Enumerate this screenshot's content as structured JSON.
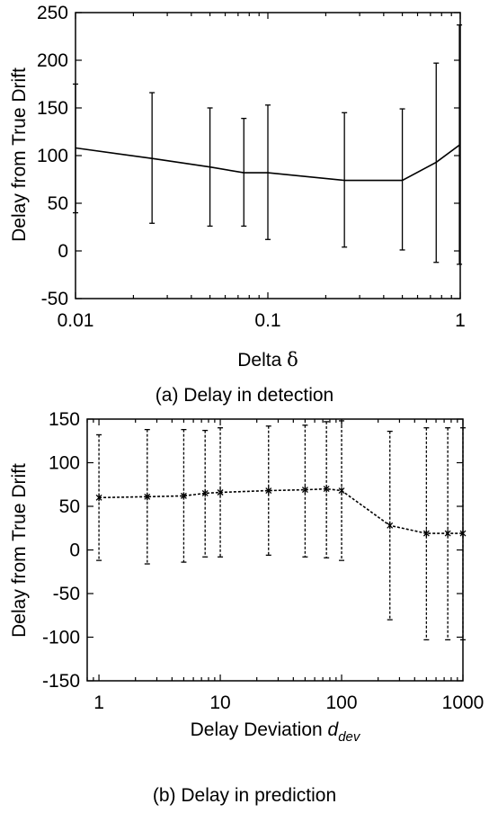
{
  "chart_data": [
    {
      "type": "line",
      "caption": "(a) Delay in detection",
      "xlabel": "Delta δ",
      "ylabel": "Delay from True Drift",
      "xscale": "log",
      "xlim": [
        0.01,
        1
      ],
      "ylim": [
        -50,
        250
      ],
      "xticks": [
        0.01,
        0.1,
        1
      ],
      "xtick_labels": [
        "0.01",
        "0.1",
        "1"
      ],
      "yticks": [
        -50,
        0,
        50,
        100,
        150,
        200,
        250
      ],
      "ytick_labels": [
        "-50",
        "0",
        "50",
        "100",
        "150",
        "200",
        "250"
      ],
      "line_style": "solid",
      "markers": false,
      "grid": false,
      "series": [
        {
          "x": [
            0.01,
            0.025,
            0.05,
            0.075,
            0.1,
            0.25,
            0.5,
            0.75,
            0.99
          ],
          "y": [
            108,
            97,
            88,
            82,
            82,
            74,
            74,
            93,
            111
          ],
          "err_low": [
            40,
            29,
            26,
            26,
            12,
            4,
            1,
            -12,
            -14
          ],
          "err_high": [
            175,
            166,
            150,
            139,
            153,
            145,
            149,
            197,
            237
          ]
        }
      ]
    },
    {
      "type": "line",
      "caption": "(b) Delay in prediction",
      "xlabel": "Delay Deviation ",
      "xlabel_var": "d",
      "xlabel_sub": "dev",
      "ylabel": "Delay from True Drift",
      "xscale": "log",
      "xlim": [
        0.8,
        1000
      ],
      "ylim": [
        -150,
        150
      ],
      "xticks": [
        1,
        10,
        100,
        1000
      ],
      "xtick_labels": [
        "1",
        "10",
        "100",
        "1000"
      ],
      "yticks": [
        -150,
        -100,
        -50,
        0,
        50,
        100,
        150
      ],
      "ytick_labels": [
        "-150",
        "-100",
        "-50",
        "0",
        "50",
        "100",
        "150"
      ],
      "line_style": "dashed",
      "markers": true,
      "grid": false,
      "series": [
        {
          "x": [
            1,
            2.5,
            5,
            7.5,
            10,
            25,
            50,
            75,
            100,
            250,
            500,
            750,
            1000
          ],
          "y": [
            60,
            61,
            62,
            65,
            66,
            68,
            69,
            70,
            68,
            28,
            19,
            19,
            19
          ],
          "err_low": [
            -12,
            -16,
            -14,
            -8,
            -8,
            -6,
            -8,
            -9,
            -12,
            -80,
            -103,
            -103,
            -103
          ],
          "err_high": [
            132,
            138,
            138,
            137,
            140,
            142,
            143,
            147,
            148,
            136,
            140,
            140,
            140
          ]
        }
      ]
    }
  ]
}
